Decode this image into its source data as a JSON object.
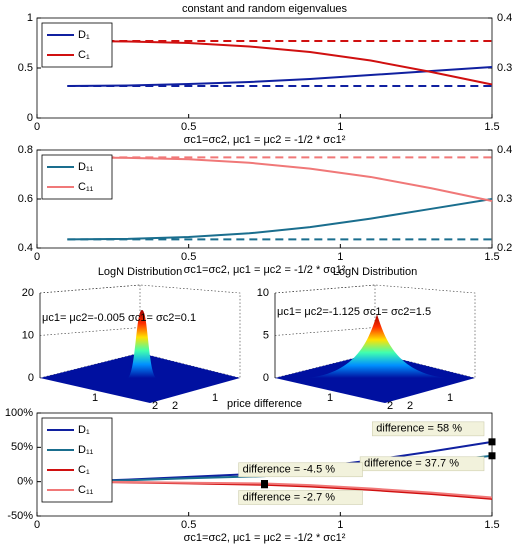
{
  "chart_data": [
    {
      "type": "line",
      "title": "constant and random eigenvalues",
      "xlabel": "σc1=σc2, μc1 = μc2 = -1/2 * σc1²",
      "x": [
        0.1,
        0.3,
        0.5,
        0.7,
        0.9,
        1.1,
        1.3,
        1.5
      ],
      "xlim": [
        0,
        1.5
      ],
      "xticks": [
        0,
        0.5,
        1,
        1.5
      ],
      "ylim": [
        0,
        1
      ],
      "yticks": [
        0,
        0.5,
        1
      ],
      "ycolor": "#1020a0",
      "y2lim": [
        0.2,
        0.4
      ],
      "y2ticks": [
        0.3,
        0.4
      ],
      "y2color": "#d01010",
      "legend": "upper left",
      "series": [
        {
          "name": "D₁",
          "color": "#1020a0",
          "values": [
            0.32,
            0.325,
            0.34,
            0.36,
            0.39,
            0.43,
            0.47,
            0.51
          ]
        },
        {
          "name": "C₁",
          "color": "#d01010",
          "axis": "y2",
          "values": [
            0.354,
            0.353,
            0.35,
            0.343,
            0.332,
            0.315,
            0.292,
            0.267
          ]
        },
        {
          "color": "#1020a0",
          "dashed": true,
          "values": [
            0.32,
            0.32,
            0.32,
            0.32,
            0.32,
            0.32,
            0.32,
            0.32
          ]
        },
        {
          "color": "#d01010",
          "dashed": true,
          "axis": "y2",
          "values": [
            0.354,
            0.354,
            0.354,
            0.354,
            0.354,
            0.354,
            0.354,
            0.354
          ]
        }
      ]
    },
    {
      "type": "line",
      "xlabel": "σc1=σc2, μc1 = μc2 = -1/2 * σc1²",
      "x": [
        0.1,
        0.3,
        0.5,
        0.7,
        0.9,
        1.1,
        1.3,
        1.5
      ],
      "xlim": [
        0,
        1.5
      ],
      "xticks": [
        0,
        0.5,
        1,
        1.5
      ],
      "ylim": [
        0.4,
        0.8
      ],
      "yticks": [
        0.4,
        0.6,
        0.8
      ],
      "ycolor": "#1a6e8e",
      "y2lim": [
        0.2,
        0.4
      ],
      "y2ticks": [
        0.2,
        0.3,
        0.4
      ],
      "y2color": "#f07878",
      "legend": "upper left",
      "series": [
        {
          "name": "D₁₁",
          "color": "#1a6e8e",
          "values": [
            0.435,
            0.437,
            0.445,
            0.46,
            0.485,
            0.52,
            0.56,
            0.6
          ]
        },
        {
          "name": "C₁₁",
          "color": "#f07878",
          "axis": "y2",
          "values": [
            0.385,
            0.384,
            0.381,
            0.374,
            0.362,
            0.345,
            0.322,
            0.296
          ]
        },
        {
          "color": "#1a6e8e",
          "dashed": true,
          "values": [
            0.435,
            0.435,
            0.435,
            0.435,
            0.435,
            0.435,
            0.435,
            0.435
          ]
        },
        {
          "color": "#f07878",
          "dashed": true,
          "axis": "y2",
          "values": [
            0.385,
            0.385,
            0.385,
            0.385,
            0.385,
            0.385,
            0.385,
            0.385
          ]
        }
      ]
    },
    {
      "type": "surface",
      "title": "LogN Distribution",
      "annotation": "μc1= μc2=-0.005 σc1= σc2=0.1",
      "zlim": [
        0,
        20
      ],
      "zticks": [
        0,
        10,
        20
      ],
      "xticks": [
        1,
        2
      ],
      "yticks": [
        2,
        1
      ],
      "peak": 16
    },
    {
      "type": "surface",
      "title": "LogN Distribution",
      "annotation": "μc1= μc2=-1.125 σc1= σc2=1.5",
      "zlim": [
        0,
        10
      ],
      "zticks": [
        0,
        5,
        10
      ],
      "xticks": [
        1,
        2
      ],
      "yticks": [
        2,
        1
      ],
      "peak": 7.5
    },
    {
      "type": "line",
      "title": "price difference",
      "xlabel": "σc1=σc2, μc1 = μc2 = -1/2 * σc1²",
      "x": [
        0.1,
        0.3,
        0.5,
        0.75,
        0.9,
        1.1,
        1.3,
        1.5
      ],
      "xlim": [
        0,
        1.5
      ],
      "xticks": [
        0,
        0.5,
        1,
        1.5
      ],
      "ylim": [
        -50,
        100
      ],
      "yticks": [
        {
          "value": -50,
          "label": "-50%"
        },
        {
          "value": 0,
          "label": "0%"
        },
        {
          "value": 50,
          "label": "50%"
        },
        {
          "value": 100,
          "label": "100%"
        }
      ],
      "legend": "upper left",
      "series": [
        {
          "name": "D₁",
          "color": "#1020a0",
          "values": [
            0,
            3,
            7,
            12,
            20,
            31,
            44,
            58
          ]
        },
        {
          "name": "D₁₁",
          "color": "#1a6e8e",
          "values": [
            0,
            2,
            5,
            8,
            13,
            20,
            28,
            37.7
          ]
        },
        {
          "name": "C₁",
          "color": "#d01010",
          "values": [
            0,
            -1,
            -2.5,
            -4.5,
            -7,
            -12,
            -18,
            -25
          ]
        },
        {
          "name": "C₁₁",
          "color": "#f07878",
          "values": [
            0,
            -0.5,
            -1.5,
            -2.7,
            -5,
            -10,
            -16,
            -23
          ]
        }
      ],
      "annotations": [
        {
          "x": 1.5,
          "y": 58,
          "label": "difference = 58 %"
        },
        {
          "x": 1.5,
          "y": 37.7,
          "label": "difference = 37.7 %"
        },
        {
          "x": 0.75,
          "y": -4.5,
          "label": "difference = -4.5 %"
        },
        {
          "x": 0.75,
          "y": -2.7,
          "label": "difference = -2.7 %"
        }
      ]
    }
  ]
}
